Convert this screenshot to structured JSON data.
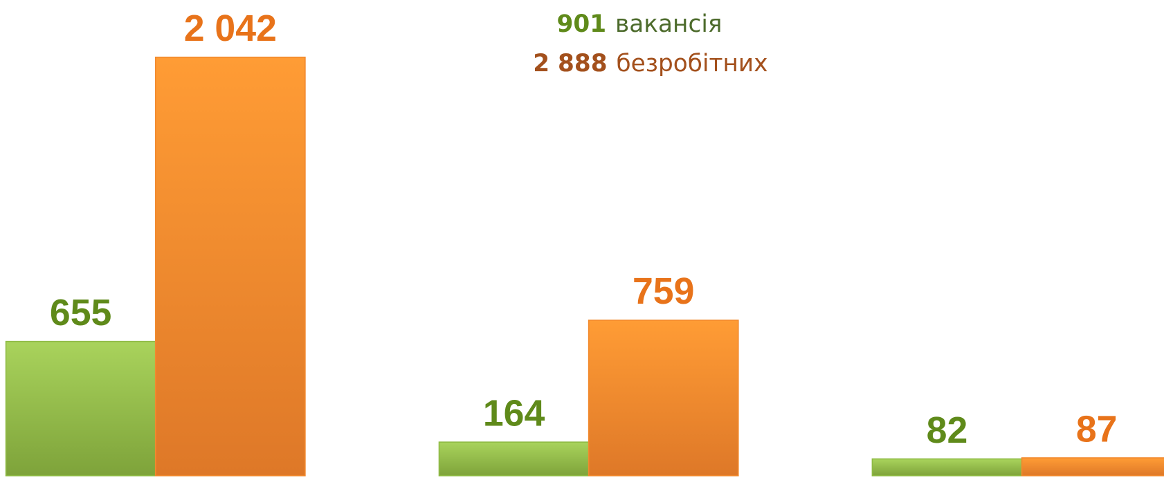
{
  "chart_data": {
    "type": "bar",
    "categories": [
      null,
      null,
      null
    ],
    "series": [
      {
        "color": "#8fbb45",
        "values": [
          655,
          164,
          82
        ],
        "value_labels": [
          "655",
          "164",
          "82"
        ]
      },
      {
        "color": "#f28a2e",
        "values": [
          2042,
          759,
          87
        ],
        "value_labels": [
          "2 042",
          "759",
          "87"
        ]
      }
    ],
    "ylim": [
      0,
      2100
    ],
    "annotations": [
      {
        "number": "901",
        "text": "вакансія"
      },
      {
        "number": "2 888",
        "text": "безробітних"
      }
    ]
  }
}
